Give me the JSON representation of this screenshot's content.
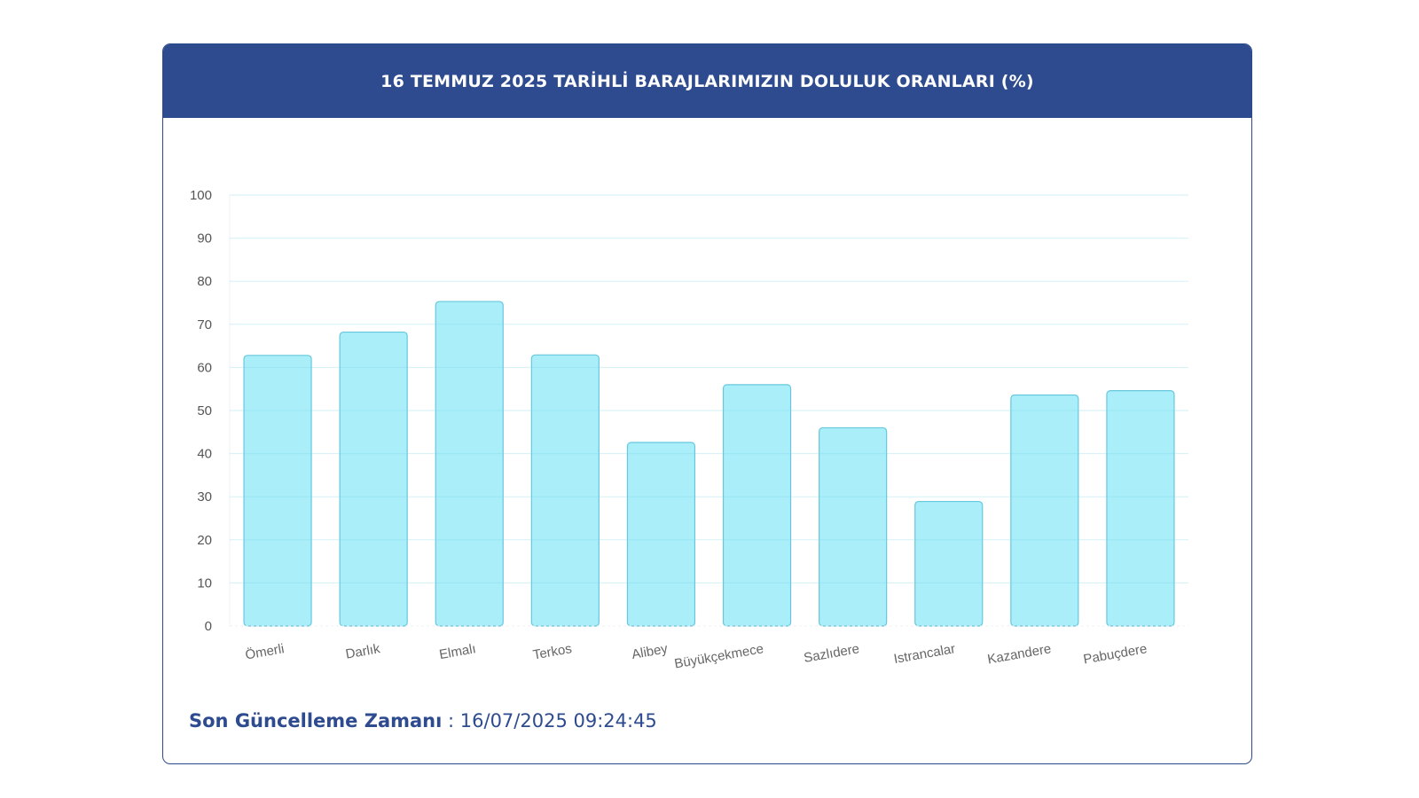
{
  "card": {
    "title": "16 TEMMUZ 2025 TARİHLİ BARAJLARIMIZIN DOLULUK ORANLARI (%)"
  },
  "footer": {
    "label": "Son Güncelleme Zamanı",
    "separator": " : ",
    "timestamp": "16/07/2025 09:24:45"
  },
  "colors": {
    "header": "#2d4b8e",
    "bar_fill": "#aaeefa",
    "bar_stroke": "#66c8dc",
    "text": "#2d4b8e"
  },
  "chart_data": {
    "type": "bar",
    "categories": [
      "Ömerli",
      "Darlık",
      "Elmalı",
      "Terkos",
      "Alibey",
      "Büyükçekmece",
      "Sazlıdere",
      "Istrancalar",
      "Kazandere",
      "Pabuçdere"
    ],
    "values": [
      62.8,
      68.2,
      75.3,
      62.9,
      42.6,
      56.0,
      46.0,
      28.9,
      53.6,
      54.6
    ],
    "ylim": [
      0,
      100
    ],
    "yticks": [
      "0",
      "10",
      "20",
      "30",
      "40",
      "50",
      "60",
      "70",
      "80",
      "90",
      "100"
    ],
    "title": "16 TEMMUZ 2025 TARİHLİ BARAJLARIMIZIN DOLULUK ORANLARI (%)",
    "xlabel": "",
    "ylabel": "",
    "grid": true,
    "legend": "none"
  }
}
